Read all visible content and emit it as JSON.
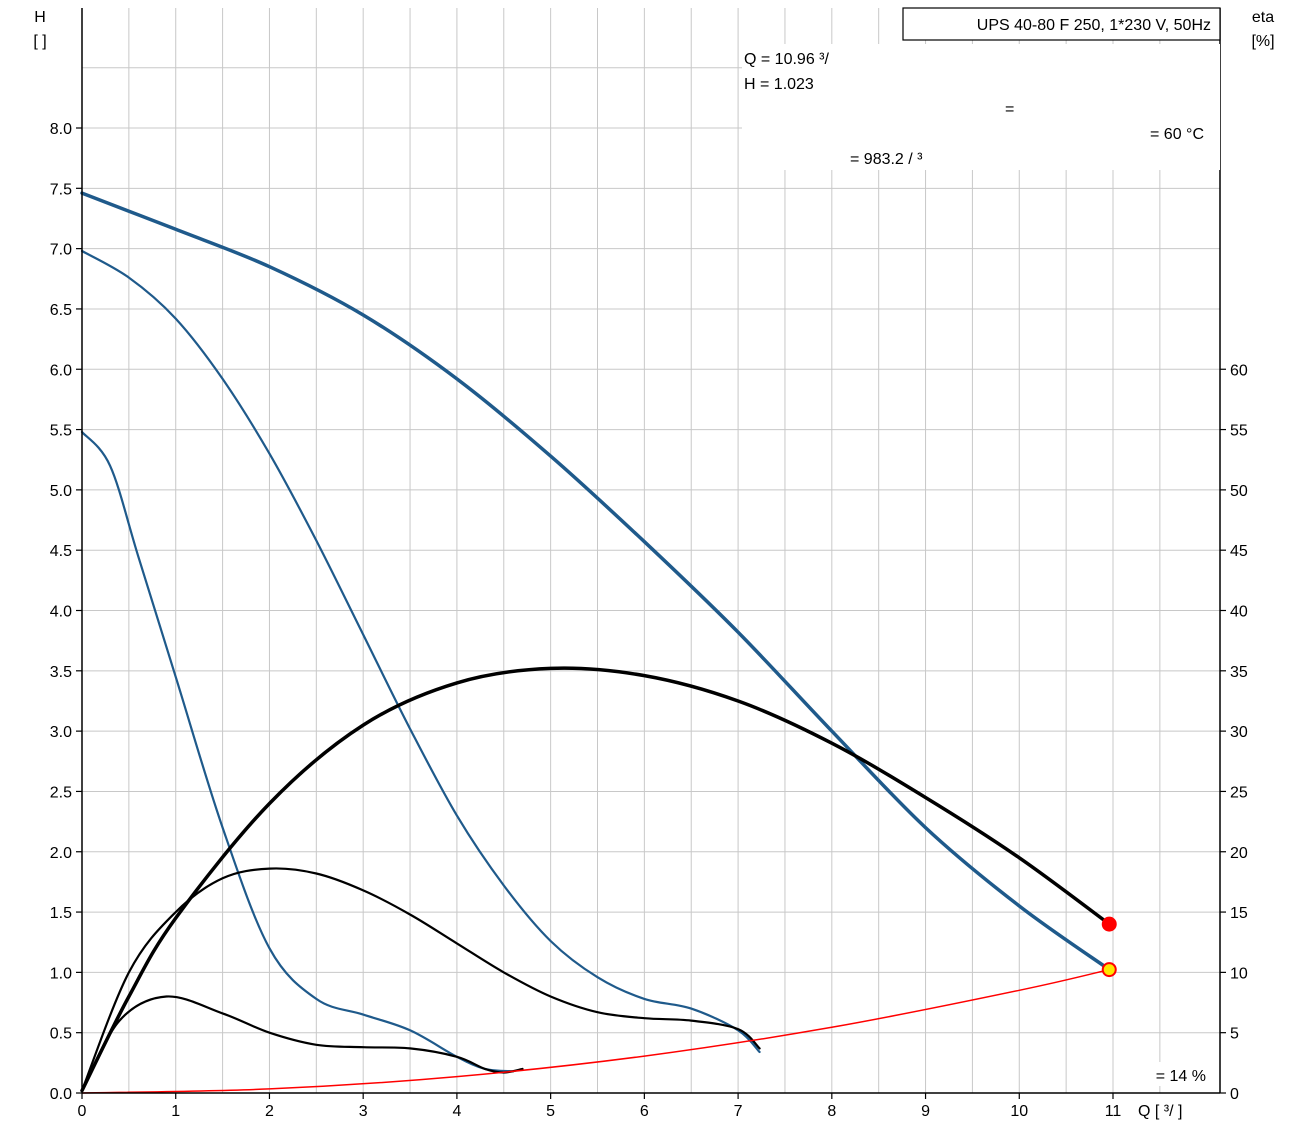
{
  "chart_data": {
    "type": "line",
    "title_box": "UPS 40-80 F 250, 1*230 V, 50Hz",
    "left_axis": {
      "label_top": "H",
      "label_bottom": "[ ]",
      "ylim": [
        0,
        9.0
      ],
      "ticks": [
        "0.0",
        "0.5",
        "1.0",
        "1.5",
        "2.0",
        "2.5",
        "3.0",
        "3.5",
        "4.0",
        "4.5",
        "5.0",
        "5.5",
        "6.0",
        "6.5",
        "7.0",
        "7.5",
        "8.0"
      ]
    },
    "right_axis": {
      "label_top": "eta",
      "label_bottom": "[%]",
      "ticks": [
        "0",
        "5",
        "10",
        "15",
        "20",
        "25",
        "30",
        "35",
        "40",
        "45",
        "50",
        "55",
        "60"
      ]
    },
    "x_axis": {
      "label": "Q [  ³/  ]",
      "xlim": [
        0,
        12.0
      ],
      "ticks": [
        "0",
        "1",
        "2",
        "3",
        "4",
        "5",
        "6",
        "7",
        "8",
        "9",
        "10",
        "11"
      ]
    },
    "info": {
      "q_line": "Q = 10.96   ³/",
      "h_line": "H = 1.023",
      "eq_line": "=",
      "temp_line": "= 60 °C",
      "density_line": "= 983.2   /  ³",
      "eta_line": "= 14 %"
    },
    "colors": {
      "head": "#1f5a8b",
      "eta": "#000000",
      "system": "#ff0000",
      "grid": "#c8c8c8"
    },
    "series": [
      {
        "kind": "head",
        "width": 3.5,
        "points": [
          [
            0,
            7.46
          ],
          [
            1,
            7.16
          ],
          [
            2,
            6.85
          ],
          [
            3,
            6.45
          ],
          [
            4,
            5.92
          ],
          [
            5,
            5.28
          ],
          [
            6,
            4.57
          ],
          [
            7,
            3.82
          ],
          [
            8,
            3.0
          ],
          [
            9,
            2.2
          ],
          [
            10,
            1.55
          ],
          [
            10.96,
            1.023
          ]
        ]
      },
      {
        "kind": "head",
        "width": 2.2,
        "points": [
          [
            0,
            6.98
          ],
          [
            0.5,
            6.76
          ],
          [
            1,
            6.42
          ],
          [
            1.5,
            5.92
          ],
          [
            2,
            5.3
          ],
          [
            2.5,
            4.58
          ],
          [
            3,
            3.8
          ],
          [
            3.5,
            3.02
          ],
          [
            4,
            2.3
          ],
          [
            4.5,
            1.72
          ],
          [
            5,
            1.26
          ],
          [
            5.5,
            0.96
          ],
          [
            6,
            0.78
          ],
          [
            6.5,
            0.7
          ],
          [
            7,
            0.52
          ],
          [
            7.23,
            0.34
          ]
        ]
      },
      {
        "kind": "head",
        "width": 2.2,
        "points": [
          [
            0,
            5.48
          ],
          [
            0.3,
            5.2
          ],
          [
            0.6,
            4.45
          ],
          [
            1,
            3.45
          ],
          [
            1.5,
            2.2
          ],
          [
            2,
            1.2
          ],
          [
            2.5,
            0.78
          ],
          [
            3,
            0.65
          ],
          [
            3.5,
            0.52
          ],
          [
            4,
            0.3
          ],
          [
            4.3,
            0.2
          ],
          [
            4.6,
            0.18
          ]
        ]
      },
      {
        "kind": "eta",
        "width": 3.5,
        "points": [
          [
            0,
            0.02
          ],
          [
            0.5,
            0.8
          ],
          [
            1,
            1.45
          ],
          [
            2,
            2.4
          ],
          [
            3,
            3.05
          ],
          [
            4,
            3.4
          ],
          [
            5,
            3.52
          ],
          [
            6,
            3.46
          ],
          [
            7,
            3.25
          ],
          [
            8,
            2.9
          ],
          [
            9,
            2.45
          ],
          [
            10,
            1.95
          ],
          [
            10.96,
            1.4
          ]
        ]
      },
      {
        "kind": "eta",
        "width": 2.2,
        "points": [
          [
            0,
            0.02
          ],
          [
            0.5,
            1.0
          ],
          [
            1,
            1.5
          ],
          [
            1.5,
            1.78
          ],
          [
            2,
            1.86
          ],
          [
            2.5,
            1.82
          ],
          [
            3,
            1.68
          ],
          [
            3.5,
            1.48
          ],
          [
            4,
            1.24
          ],
          [
            4.5,
            1.0
          ],
          [
            5,
            0.8
          ],
          [
            5.5,
            0.67
          ],
          [
            6,
            0.62
          ],
          [
            6.5,
            0.6
          ],
          [
            7,
            0.53
          ],
          [
            7.23,
            0.37
          ]
        ]
      },
      {
        "kind": "eta",
        "width": 2.2,
        "points": [
          [
            0,
            0.02
          ],
          [
            0.4,
            0.6
          ],
          [
            0.9,
            0.8
          ],
          [
            1.5,
            0.66
          ],
          [
            2,
            0.5
          ],
          [
            2.5,
            0.4
          ],
          [
            3,
            0.38
          ],
          [
            3.5,
            0.37
          ],
          [
            4,
            0.3
          ],
          [
            4.3,
            0.2
          ],
          [
            4.5,
            0.17
          ],
          [
            4.7,
            0.2
          ]
        ]
      },
      {
        "kind": "system",
        "width": 1.5,
        "points": [
          [
            0,
            0
          ],
          [
            2,
            0.034
          ],
          [
            4,
            0.136
          ],
          [
            6,
            0.306
          ],
          [
            8,
            0.545
          ],
          [
            10,
            0.851
          ],
          [
            10.96,
            1.023
          ]
        ]
      }
    ],
    "markers": [
      {
        "label": "operating-point",
        "x": 10.96,
        "y": 1.023,
        "fill": "#ffe600",
        "stroke": "#ff0000"
      },
      {
        "label": "eta-endpoint",
        "x": 10.96,
        "y": 1.4,
        "fill": "#ff0000",
        "stroke": "#ff0000"
      }
    ]
  }
}
